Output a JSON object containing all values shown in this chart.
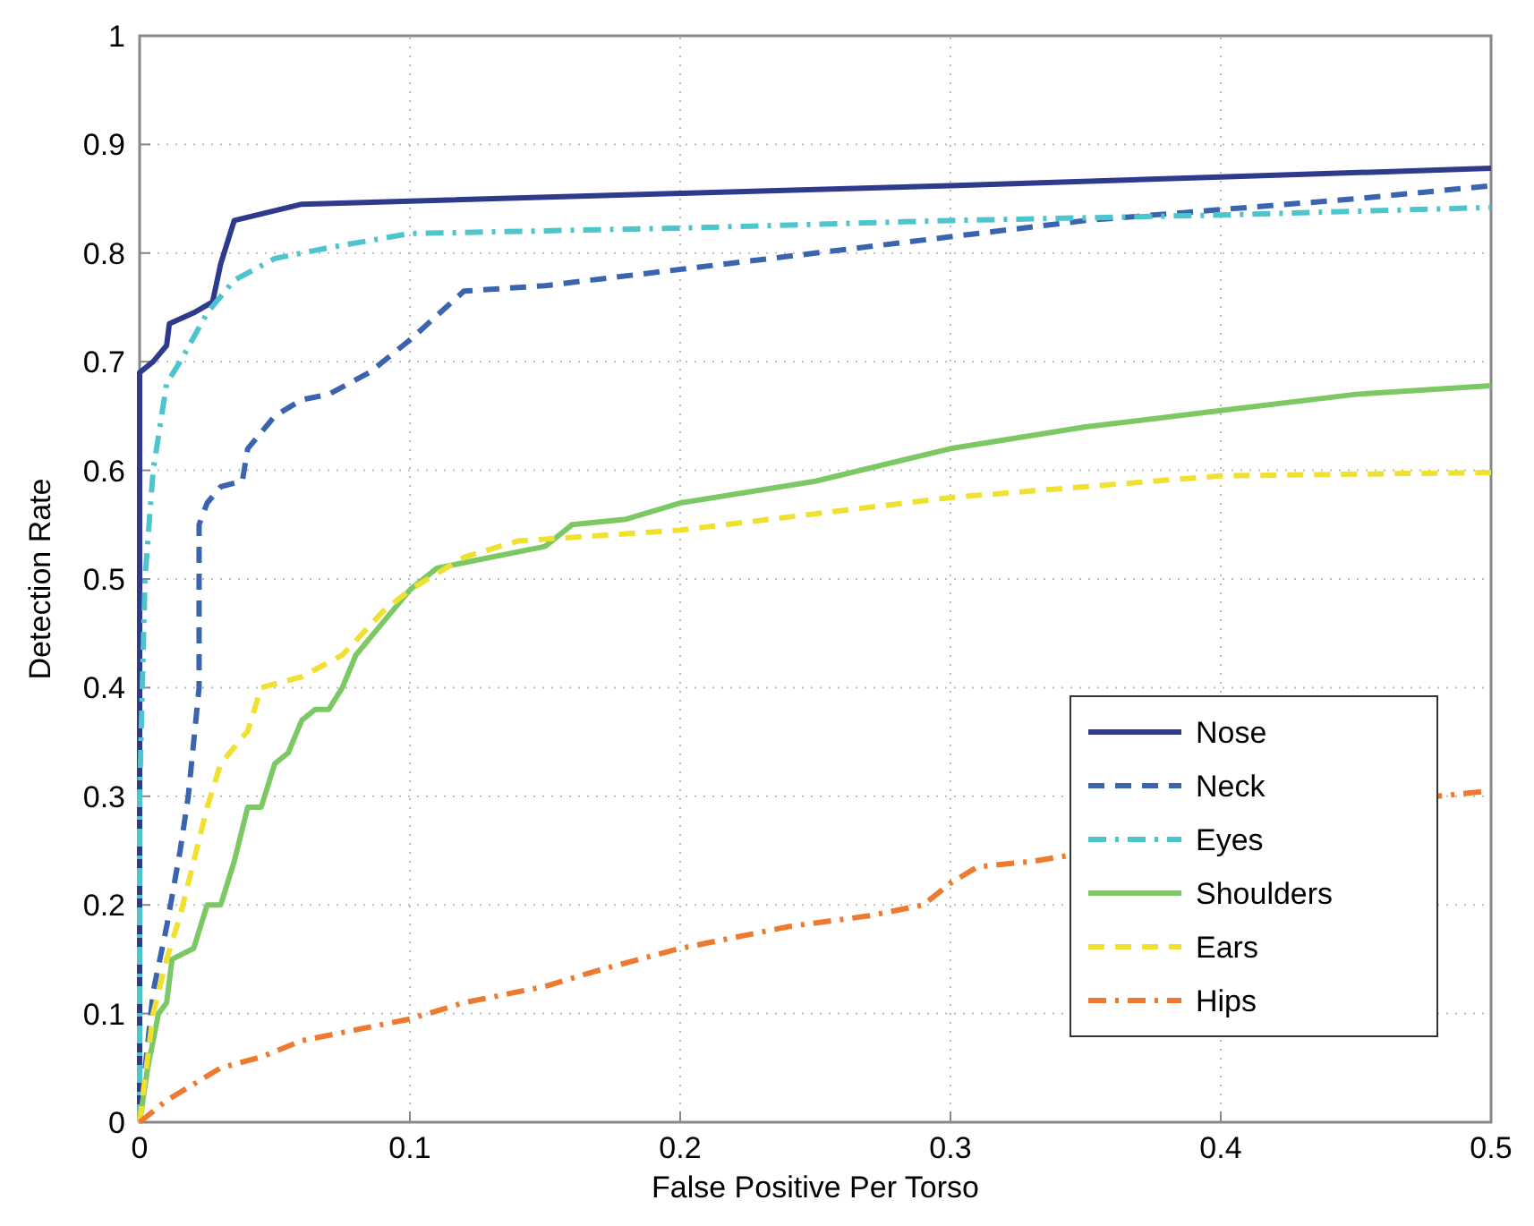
{
  "chart_data": {
    "type": "line",
    "xlabel": "False Positive Per Torso",
    "ylabel": "Detection Rate",
    "xlim": [
      0,
      0.5
    ],
    "ylim": [
      0,
      1
    ],
    "xticks": [
      0,
      0.1,
      0.2,
      0.3,
      0.4,
      0.5
    ],
    "yticks": [
      0,
      0.1,
      0.2,
      0.3,
      0.4,
      0.5,
      0.6,
      0.7,
      0.8,
      0.9,
      1
    ],
    "grid": true,
    "legend": "bottom right",
    "marker": "none",
    "series": [
      {
        "name": "Nose",
        "color": "#2e3a8c",
        "line_style": "solid",
        "x": [
          0,
          0,
          0.005,
          0.01,
          0.011,
          0.02,
          0.027,
          0.03,
          0.035,
          0.06,
          0.2,
          0.3,
          0.4,
          0.5
        ],
        "values": [
          0,
          0.69,
          0.7,
          0.715,
          0.735,
          0.745,
          0.755,
          0.79,
          0.83,
          0.845,
          0.855,
          0.862,
          0.87,
          0.878
        ]
      },
      {
        "name": "Neck",
        "color": "#3a64b0",
        "line_style": "dashed",
        "x": [
          0,
          0.005,
          0.01,
          0.015,
          0.018,
          0.02,
          0.022,
          0.022,
          0.025,
          0.03,
          0.038,
          0.04,
          0.05,
          0.06,
          0.07,
          0.085,
          0.1,
          0.12,
          0.15,
          0.2,
          0.25,
          0.3,
          0.35,
          0.4,
          0.45,
          0.5
        ],
        "values": [
          0,
          0.12,
          0.18,
          0.25,
          0.3,
          0.35,
          0.4,
          0.55,
          0.57,
          0.585,
          0.59,
          0.62,
          0.65,
          0.665,
          0.67,
          0.69,
          0.72,
          0.765,
          0.77,
          0.785,
          0.8,
          0.815,
          0.83,
          0.84,
          0.85,
          0.862
        ]
      },
      {
        "name": "Eyes",
        "color": "#4ec4cc",
        "line_style": "dashdot",
        "x": [
          0,
          0,
          0.002,
          0.005,
          0.01,
          0.015,
          0.025,
          0.035,
          0.05,
          0.07,
          0.1,
          0.2,
          0.3,
          0.4,
          0.5
        ],
        "values": [
          0,
          0.3,
          0.5,
          0.6,
          0.68,
          0.7,
          0.745,
          0.775,
          0.795,
          0.805,
          0.818,
          0.823,
          0.83,
          0.835,
          0.842
        ]
      },
      {
        "name": "Shoulders",
        "color": "#7cc864",
        "line_style": "solid",
        "x": [
          0,
          0.003,
          0.007,
          0.01,
          0.012,
          0.02,
          0.025,
          0.03,
          0.035,
          0.04,
          0.045,
          0.05,
          0.055,
          0.06,
          0.065,
          0.07,
          0.075,
          0.08,
          0.09,
          0.1,
          0.11,
          0.12,
          0.15,
          0.16,
          0.18,
          0.2,
          0.25,
          0.3,
          0.35,
          0.4,
          0.45,
          0.5
        ],
        "values": [
          0,
          0.05,
          0.1,
          0.11,
          0.15,
          0.16,
          0.2,
          0.2,
          0.24,
          0.29,
          0.29,
          0.33,
          0.34,
          0.37,
          0.38,
          0.38,
          0.4,
          0.43,
          0.46,
          0.49,
          0.51,
          0.515,
          0.53,
          0.55,
          0.555,
          0.57,
          0.59,
          0.62,
          0.64,
          0.655,
          0.67,
          0.678
        ]
      },
      {
        "name": "Ears",
        "color": "#f0e030",
        "line_style": "dashed",
        "x": [
          0,
          0.005,
          0.01,
          0.015,
          0.02,
          0.025,
          0.03,
          0.04,
          0.045,
          0.06,
          0.075,
          0.09,
          0.1,
          0.12,
          0.14,
          0.2,
          0.3,
          0.4,
          0.5
        ],
        "values": [
          0,
          0.1,
          0.15,
          0.19,
          0.24,
          0.29,
          0.33,
          0.36,
          0.4,
          0.41,
          0.43,
          0.47,
          0.49,
          0.52,
          0.535,
          0.545,
          0.575,
          0.595,
          0.598
        ]
      },
      {
        "name": "Hips",
        "color": "#ee7a30",
        "line_style": "dashdot",
        "x": [
          0,
          0.005,
          0.01,
          0.02,
          0.03,
          0.045,
          0.06,
          0.08,
          0.1,
          0.12,
          0.15,
          0.17,
          0.2,
          0.24,
          0.27,
          0.29,
          0.3,
          0.31,
          0.33,
          0.48,
          0.5
        ],
        "values": [
          0,
          0.01,
          0.02,
          0.035,
          0.05,
          0.06,
          0.075,
          0.085,
          0.095,
          0.11,
          0.125,
          0.14,
          0.16,
          0.18,
          0.19,
          0.2,
          0.22,
          0.235,
          0.24,
          0.3,
          0.305
        ]
      }
    ]
  }
}
